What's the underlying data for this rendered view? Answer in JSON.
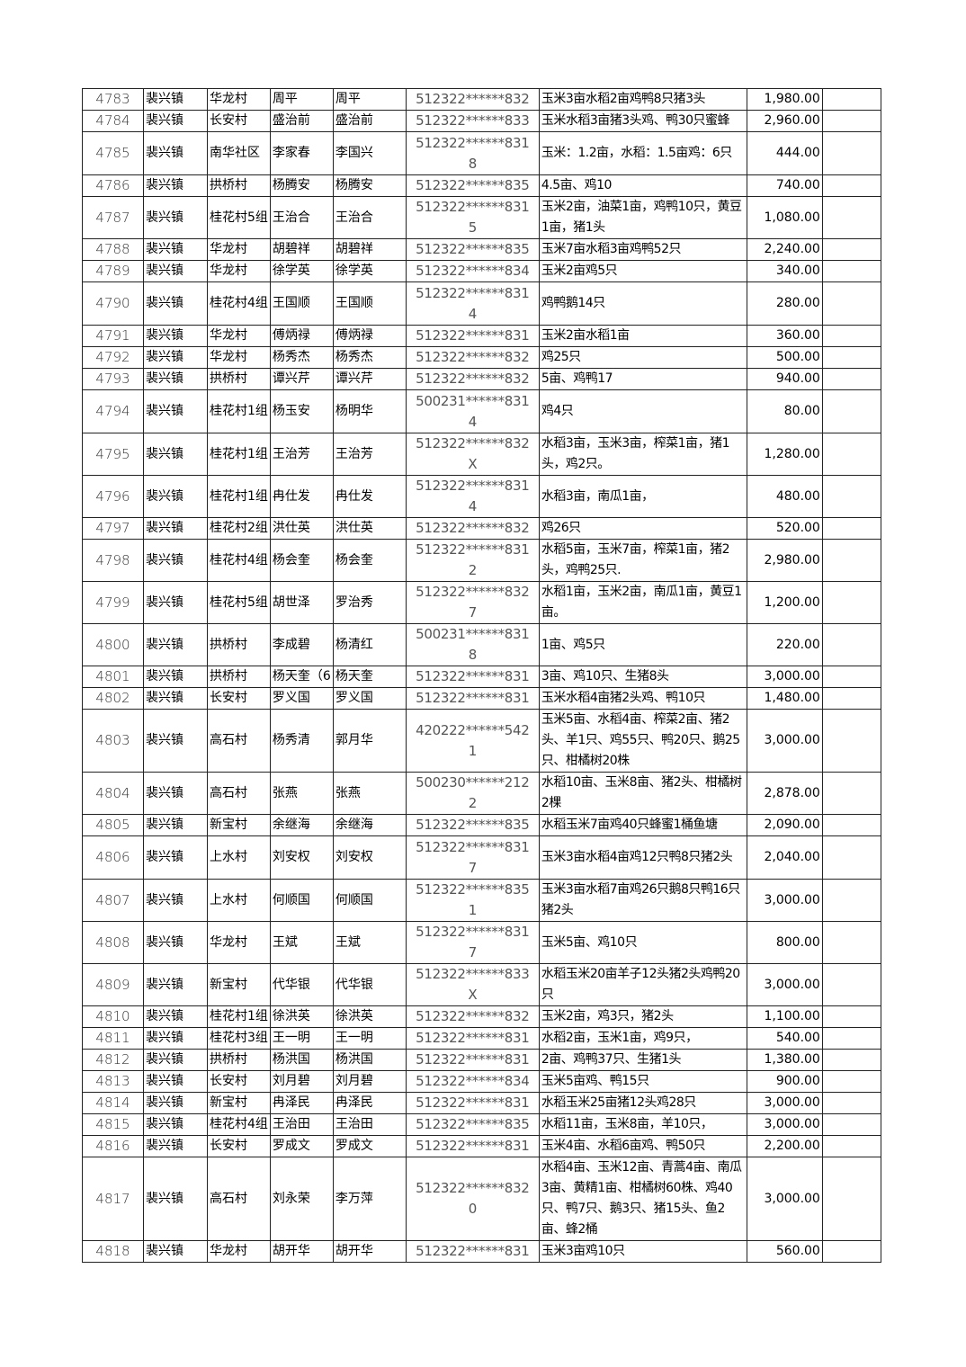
{
  "rows": [
    {
      "no": "4783",
      "town": "裴兴镇",
      "village": "华龙村",
      "name1": "周平",
      "name2": "周平",
      "id": "512322******832",
      "desc": "玉米3亩水稻2亩鸡鸭8只猪3头",
      "amount": "1,980.00"
    },
    {
      "no": "4784",
      "town": "裴兴镇",
      "village": "长安村",
      "name1": "盛治前",
      "name2": "盛治前",
      "id": "512322******833",
      "desc": "玉米水稻3亩猪3头鸡、鸭30只蜜蜂",
      "amount": "2,960.00"
    },
    {
      "no": "4785",
      "town": "裴兴镇",
      "village": "南华社区",
      "name1": "李家春",
      "name2": "李国兴",
      "id": "512322******8318",
      "desc": "玉米：1.2亩，水稻：1.5亩鸡：6只",
      "amount": "444.00"
    },
    {
      "no": "4786",
      "town": "裴兴镇",
      "village": "拱桥村",
      "name1": "杨腾安",
      "name2": "杨腾安",
      "id": "512322******835",
      "desc": "4.5亩、鸡10",
      "amount": "740.00"
    },
    {
      "no": "4787",
      "town": "裴兴镇",
      "village": "桂花村5组",
      "name1": "王治合",
      "name2": "王治合",
      "id": "512322******8315",
      "desc": "玉米2亩，油菜1亩，鸡鸭10只，黄豆1亩，猪1头",
      "amount": "1,080.00"
    },
    {
      "no": "4788",
      "town": "裴兴镇",
      "village": "华龙村",
      "name1": "胡碧祥",
      "name2": "胡碧祥",
      "id": "512322******835",
      "desc": "玉米7亩水稻3亩鸡鸭52只",
      "amount": "2,240.00"
    },
    {
      "no": "4789",
      "town": "裴兴镇",
      "village": "华龙村",
      "name1": "徐学英",
      "name2": "徐学英",
      "id": "512322******834",
      "desc": "玉米2亩鸡5只",
      "amount": "340.00"
    },
    {
      "no": "4790",
      "town": "裴兴镇",
      "village": "桂花村4组",
      "name1": "王国顺",
      "name2": "王国顺",
      "id": "512322******8314",
      "desc": "鸡鸭鹅14只",
      "amount": "280.00"
    },
    {
      "no": "4791",
      "town": "裴兴镇",
      "village": "华龙村",
      "name1": "傅炳禄",
      "name2": "傅炳禄",
      "id": "512322******831",
      "desc": "玉米2亩水稻1亩",
      "amount": "360.00"
    },
    {
      "no": "4792",
      "town": "裴兴镇",
      "village": "华龙村",
      "name1": "杨秀杰",
      "name2": "杨秀杰",
      "id": "512322******832",
      "desc": "鸡25只",
      "amount": "500.00"
    },
    {
      "no": "4793",
      "town": "裴兴镇",
      "village": "拱桥村",
      "name1": "谭兴芹",
      "name2": "谭兴芹",
      "id": "512322******832",
      "desc": "5亩、鸡鸭17",
      "amount": "940.00"
    },
    {
      "no": "4794",
      "town": "裴兴镇",
      "village": "桂花村1组",
      "name1": "杨玉安",
      "name2": "杨明华",
      "id": "500231******8314",
      "desc": "鸡4只",
      "amount": "80.00"
    },
    {
      "no": "4795",
      "town": "裴兴镇",
      "village": "桂花村1组",
      "name1": "王治芳",
      "name2": "王治芳",
      "id": "512322******832X",
      "desc": "水稻3亩，玉米3亩，榨菜1亩，猪1头，鸡2只。",
      "amount": "1,280.00"
    },
    {
      "no": "4796",
      "town": "裴兴镇",
      "village": "桂花村1组",
      "name1": "冉仕发",
      "name2": "冉仕发",
      "id": "512322******8314",
      "desc": "水稻3亩，南瓜1亩，",
      "amount": "480.00"
    },
    {
      "no": "4797",
      "town": "裴兴镇",
      "village": "桂花村2组",
      "name1": "洪仕英",
      "name2": "洪仕英",
      "id": "512322******832",
      "desc": "鸡26只",
      "amount": "520.00"
    },
    {
      "no": "4798",
      "town": "裴兴镇",
      "village": "桂花村4组",
      "name1": "杨会奎",
      "name2": "杨会奎",
      "id": "512322******8312",
      "desc": "水稻5亩，玉米7亩，榨菜1亩，猪2头，鸡鸭25只.",
      "amount": "2,980.00"
    },
    {
      "no": "4799",
      "town": "裴兴镇",
      "village": "桂花村5组",
      "name1": "胡世泽",
      "name2": "罗治秀",
      "id": "512322******8327",
      "desc": "水稻1亩，玉米2亩，南瓜1亩，黄豆1亩。",
      "amount": "1,200.00"
    },
    {
      "no": "4800",
      "town": "裴兴镇",
      "village": "拱桥村",
      "name1": "李成碧",
      "name2": "杨清红",
      "id": "500231******8318",
      "desc": "1亩、鸡5只",
      "amount": "220.00"
    },
    {
      "no": "4801",
      "town": "裴兴镇",
      "village": "拱桥村",
      "name1": "杨天奎（6",
      "name2": "杨天奎",
      "id": "512322******831",
      "desc": "3亩、鸡10只、生猪8头",
      "amount": "3,000.00"
    },
    {
      "no": "4802",
      "town": "裴兴镇",
      "village": "长安村",
      "name1": "罗义国",
      "name2": "罗义国",
      "id": "512322******831",
      "desc": "玉米水稻4亩猪2头鸡、鸭10只",
      "amount": "1,480.00"
    },
    {
      "no": "4803",
      "town": "裴兴镇",
      "village": "高石村",
      "name1": "杨秀清",
      "name2": "郭月华",
      "id": "420222******5421",
      "desc": "玉米5亩、水稻4亩、榨菜2亩、猪2头、羊1只、鸡55只、鸭20只、鹅25只、柑橘树20株",
      "amount": "3,000.00"
    },
    {
      "no": "4804",
      "town": "裴兴镇",
      "village": "高石村",
      "name1": "张燕",
      "name2": "张燕",
      "id": "500230******2122",
      "desc": "水稻10亩、玉米8亩、猪2头、柑橘树2棵",
      "amount": "2,878.00"
    },
    {
      "no": "4805",
      "town": "裴兴镇",
      "village": "新宝村",
      "name1": "余继海",
      "name2": "余继海",
      "id": "512322******835",
      "desc": "水稻玉米7亩鸡40只蜂蜜1桶鱼塘",
      "amount": "2,090.00"
    },
    {
      "no": "4806",
      "town": "裴兴镇",
      "village": "上水村",
      "name1": "刘安权",
      "name2": "刘安权",
      "id": "512322******8317",
      "desc": "玉米3亩水稻4亩鸡12只鸭8只猪2头",
      "amount": "2,040.00"
    },
    {
      "no": "4807",
      "town": "裴兴镇",
      "village": "上水村",
      "name1": "何顺国",
      "name2": "何顺国",
      "id": "512322******8351",
      "desc": "玉米3亩水稻7亩鸡26只鹅8只鸭16只猪2头",
      "amount": "3,000.00"
    },
    {
      "no": "4808",
      "town": "裴兴镇",
      "village": "华龙村",
      "name1": "王斌",
      "name2": "王斌",
      "id": "512322******8317",
      "desc": "玉米5亩、鸡10只",
      "amount": "800.00"
    },
    {
      "no": "4809",
      "town": "裴兴镇",
      "village": "新宝村",
      "name1": "代华银",
      "name2": "代华银",
      "id": "512322******833X",
      "desc": "水稻玉米20亩羊子12头猪2头鸡鸭20只",
      "amount": "3,000.00"
    },
    {
      "no": "4810",
      "town": "裴兴镇",
      "village": "桂花村1组",
      "name1": "徐洪英",
      "name2": "徐洪英",
      "id": "512322******832",
      "desc": "玉米2亩，鸡3只，猪2头",
      "amount": "1,100.00"
    },
    {
      "no": "4811",
      "town": "裴兴镇",
      "village": "桂花村3组",
      "name1": "王一明",
      "name2": "王一明",
      "id": "512322******831",
      "desc": "水稻2亩，玉米1亩，鸡9只，",
      "amount": "540.00"
    },
    {
      "no": "4812",
      "town": "裴兴镇",
      "village": "拱桥村",
      "name1": "杨洪国",
      "name2": "杨洪国",
      "id": "512322******831",
      "desc": "2亩、鸡鸭37只、生猪1头",
      "amount": "1,380.00"
    },
    {
      "no": "4813",
      "town": "裴兴镇",
      "village": "长安村",
      "name1": "刘月碧",
      "name2": "刘月碧",
      "id": "512322******834",
      "desc": "玉米5亩鸡、鸭15只",
      "amount": "900.00"
    },
    {
      "no": "4814",
      "town": "裴兴镇",
      "village": "新宝村",
      "name1": "冉泽民",
      "name2": "冉泽民",
      "id": "512322******831",
      "desc": "水稻玉米25亩猪12头鸡28只",
      "amount": "3,000.00"
    },
    {
      "no": "4815",
      "town": "裴兴镇",
      "village": "桂花村4组",
      "name1": "王治田",
      "name2": "王治田",
      "id": "512322******835",
      "desc": "水稻11亩，玉米8亩，羊10只，",
      "amount": "3,000.00"
    },
    {
      "no": "4816",
      "town": "裴兴镇",
      "village": "长安村",
      "name1": "罗成文",
      "name2": "罗成文",
      "id": "512322******831",
      "desc": "玉米4亩、水稻6亩鸡、鸭50只",
      "amount": "2,200.00"
    },
    {
      "no": "4817",
      "town": "裴兴镇",
      "village": "高石村",
      "name1": "刘永荣",
      "name2": "李万萍",
      "id": "512322******8320",
      "desc": "水稻4亩、玉米12亩、青蒿4亩、南瓜3亩、黄精1亩、柑橘树60株、鸡40只、鸭7只、鹅3只、猪15头、鱼2亩、蜂2桶",
      "amount": "3,000.00"
    },
    {
      "no": "4818",
      "town": "裴兴镇",
      "village": "华龙村",
      "name1": "胡开华",
      "name2": "胡开华",
      "id": "512322******831",
      "desc": "玉米3亩鸡10只",
      "amount": "560.00"
    }
  ]
}
